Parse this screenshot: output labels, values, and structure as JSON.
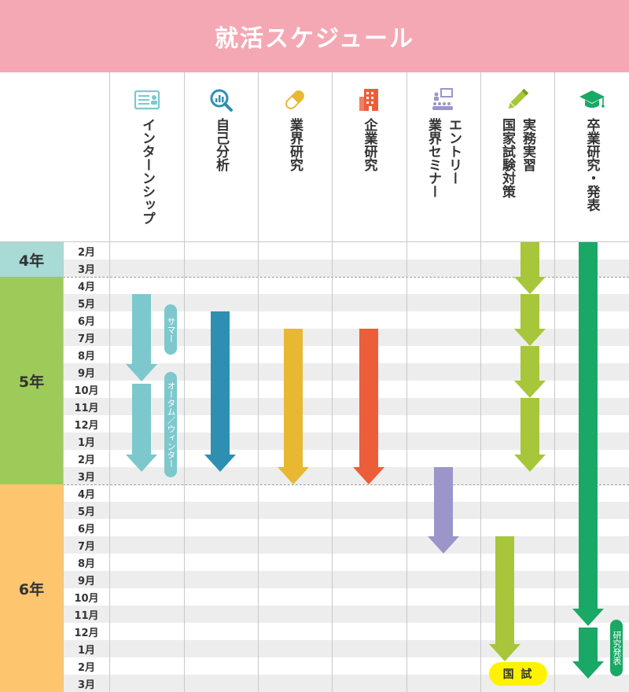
{
  "title": "就活スケジュール",
  "colors": {
    "title_bg": "#f4a8b4",
    "year4": "#a8dad6",
    "year5": "#9ccb59",
    "year6": "#fdc56d",
    "internship": "#7cc8cd",
    "self_analysis": "#2f8fb2",
    "industry": "#e9b832",
    "company": "#ec5e3a",
    "seminar": "#9b95c9",
    "exam_practice": "#a7c63a",
    "graduation": "#1aa866",
    "kokushi_bg": "#fff200"
  },
  "columns": [
    {
      "key": "internship",
      "icon": "id-card-icon",
      "label": "インターンシップ"
    },
    {
      "key": "self_analysis",
      "icon": "magnifier-chart-icon",
      "label": "自己分析"
    },
    {
      "key": "industry",
      "icon": "capsule-icon",
      "label": "業界研究"
    },
    {
      "key": "company",
      "icon": "building-icon",
      "label": "企業研究"
    },
    {
      "key": "seminar",
      "icon": "seminar-icon",
      "label": "エントリー\n業界セミナー",
      "label_lines": [
        "エントリー",
        "業界セミナー"
      ]
    },
    {
      "key": "exam_practice",
      "icon": "pencil-icon",
      "label_lines": [
        "実務実習",
        "国家試験対策"
      ]
    },
    {
      "key": "graduation",
      "icon": "graduation-cap-icon",
      "label": "卒業研究・発表"
    }
  ],
  "years": [
    {
      "label": "4年",
      "months": [
        "2月",
        "3月"
      ]
    },
    {
      "label": "5年",
      "months": [
        "4月",
        "5月",
        "6月",
        "7月",
        "8月",
        "9月",
        "10月",
        "11月",
        "12月",
        "1月",
        "2月",
        "3月"
      ]
    },
    {
      "label": "6年",
      "months": [
        "4月",
        "5月",
        "6月",
        "7月",
        "8月",
        "9月",
        "10月",
        "11月",
        "12月",
        "1月",
        "2月",
        "3月"
      ]
    }
  ],
  "tags": {
    "summer": "サマー",
    "autumn_winter": "オータム／ウィンター",
    "research_presentation": "研究発表",
    "kokushi": "国 試"
  }
}
